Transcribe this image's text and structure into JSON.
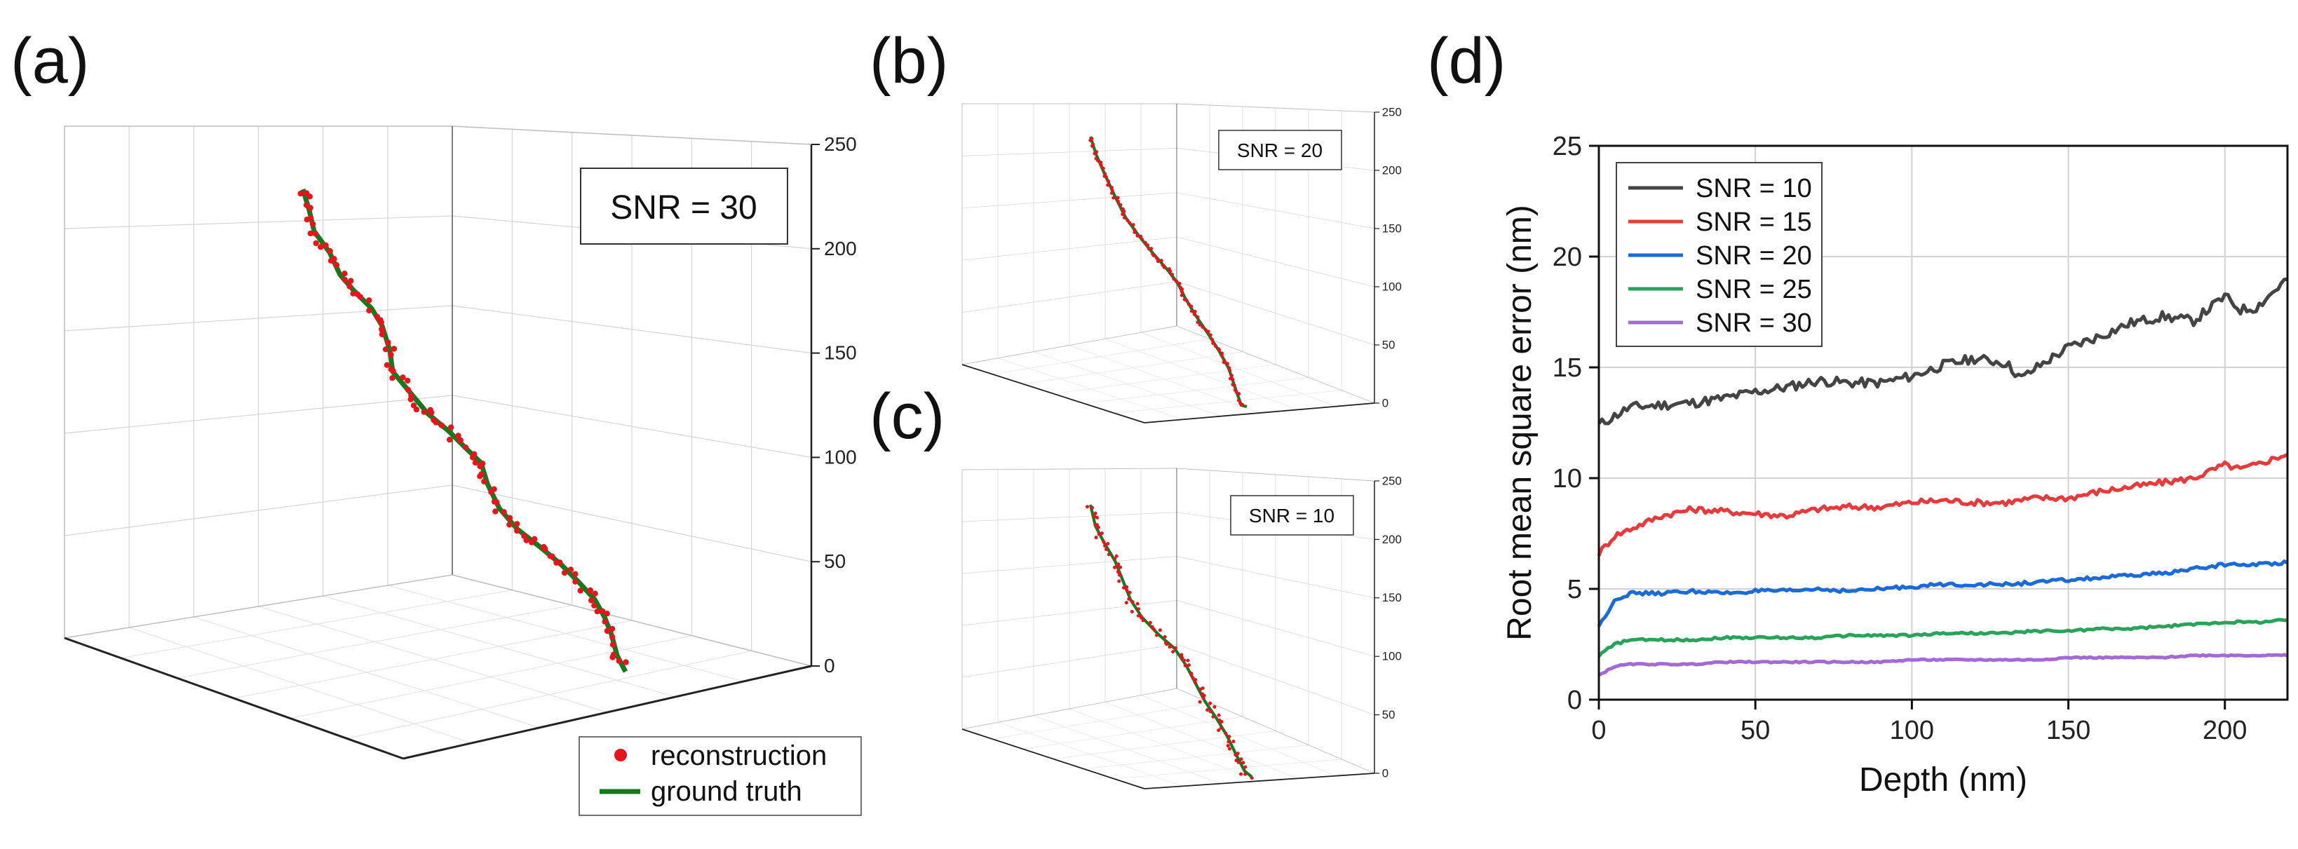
{
  "panels": {
    "a": {
      "label": "(a)",
      "snr_label": "SNR = 30",
      "z_ticks": [
        "0",
        "50",
        "100",
        "150",
        "200",
        "250"
      ]
    },
    "b": {
      "label": "(b)",
      "snr_label": "SNR = 20",
      "z_ticks": [
        "0",
        "50",
        "100",
        "150",
        "200",
        "250"
      ]
    },
    "c": {
      "label": "(c)",
      "snr_label": "SNR = 10",
      "z_ticks": [
        "0",
        "50",
        "100",
        "150",
        "200",
        "250"
      ]
    },
    "d": {
      "label": "(d)"
    }
  },
  "legend_3d": {
    "reconstruction": "reconstruction",
    "ground_truth": "ground truth"
  },
  "colors": {
    "reconstruction": "#e8141b",
    "ground_truth": "#157a1c"
  },
  "chart_data": {
    "type": "line",
    "title": "",
    "xlabel": "Depth (nm)",
    "ylabel": "Root mean square error (nm)",
    "xlim": [
      0,
      220
    ],
    "ylim": [
      0,
      25
    ],
    "x_ticks": [
      0,
      50,
      100,
      150,
      200
    ],
    "y_ticks": [
      0,
      5,
      10,
      15,
      20,
      25
    ],
    "grid": true,
    "legend_position": "top-left",
    "series": [
      {
        "name": "SNR = 10",
        "color": "#444444",
        "x": [
          0,
          5,
          10,
          20,
          30,
          40,
          50,
          60,
          70,
          80,
          90,
          100,
          110,
          120,
          130,
          135,
          140,
          150,
          160,
          170,
          180,
          190,
          200,
          205,
          210,
          220
        ],
        "y": [
          12.4,
          12.8,
          13.2,
          13.3,
          13.4,
          13.6,
          13.9,
          14.1,
          14.4,
          14.3,
          14.3,
          14.6,
          15.1,
          15.4,
          15.2,
          14.5,
          15.0,
          15.9,
          16.4,
          17.0,
          17.3,
          17.1,
          18.2,
          17.6,
          17.7,
          19.0
        ]
      },
      {
        "name": "SNR = 15",
        "color": "#e83a3a",
        "x": [
          0,
          5,
          10,
          20,
          30,
          40,
          50,
          60,
          70,
          80,
          90,
          100,
          110,
          120,
          130,
          140,
          150,
          160,
          170,
          180,
          190,
          200,
          205,
          210,
          220
        ],
        "y": [
          6.6,
          7.4,
          7.7,
          8.3,
          8.6,
          8.5,
          8.4,
          8.3,
          8.6,
          8.7,
          8.7,
          8.9,
          9.0,
          8.9,
          8.9,
          9.1,
          9.1,
          9.4,
          9.6,
          9.8,
          10.0,
          10.6,
          10.4,
          10.6,
          11.1
        ]
      },
      {
        "name": "SNR = 20",
        "color": "#1a6ad8",
        "x": [
          0,
          5,
          10,
          20,
          30,
          40,
          50,
          60,
          70,
          80,
          90,
          100,
          110,
          120,
          130,
          140,
          150,
          160,
          170,
          180,
          190,
          200,
          210,
          220
        ],
        "y": [
          3.3,
          4.5,
          4.8,
          4.8,
          4.9,
          4.8,
          4.9,
          4.9,
          5.0,
          4.9,
          5.0,
          5.1,
          5.2,
          5.2,
          5.2,
          5.3,
          5.4,
          5.5,
          5.6,
          5.7,
          5.9,
          6.1,
          6.1,
          6.2
        ]
      },
      {
        "name": "SNR = 25",
        "color": "#2aa35a",
        "x": [
          0,
          5,
          10,
          20,
          30,
          40,
          50,
          60,
          70,
          80,
          90,
          100,
          110,
          120,
          130,
          140,
          150,
          160,
          170,
          180,
          190,
          200,
          210,
          220
        ],
        "y": [
          2.0,
          2.5,
          2.7,
          2.7,
          2.7,
          2.8,
          2.8,
          2.8,
          2.8,
          2.9,
          2.9,
          2.9,
          3.0,
          3.0,
          3.0,
          3.1,
          3.1,
          3.2,
          3.2,
          3.3,
          3.4,
          3.5,
          3.5,
          3.6
        ]
      },
      {
        "name": "SNR = 30",
        "color": "#a36ad6",
        "x": [
          0,
          5,
          10,
          20,
          30,
          40,
          50,
          60,
          70,
          80,
          90,
          100,
          110,
          120,
          130,
          140,
          150,
          160,
          170,
          180,
          190,
          200,
          210,
          220
        ],
        "y": [
          1.1,
          1.5,
          1.6,
          1.6,
          1.6,
          1.7,
          1.7,
          1.7,
          1.7,
          1.7,
          1.7,
          1.8,
          1.8,
          1.8,
          1.8,
          1.8,
          1.9,
          1.9,
          1.9,
          1.9,
          2.0,
          2.0,
          2.0,
          2.0
        ]
      }
    ]
  }
}
